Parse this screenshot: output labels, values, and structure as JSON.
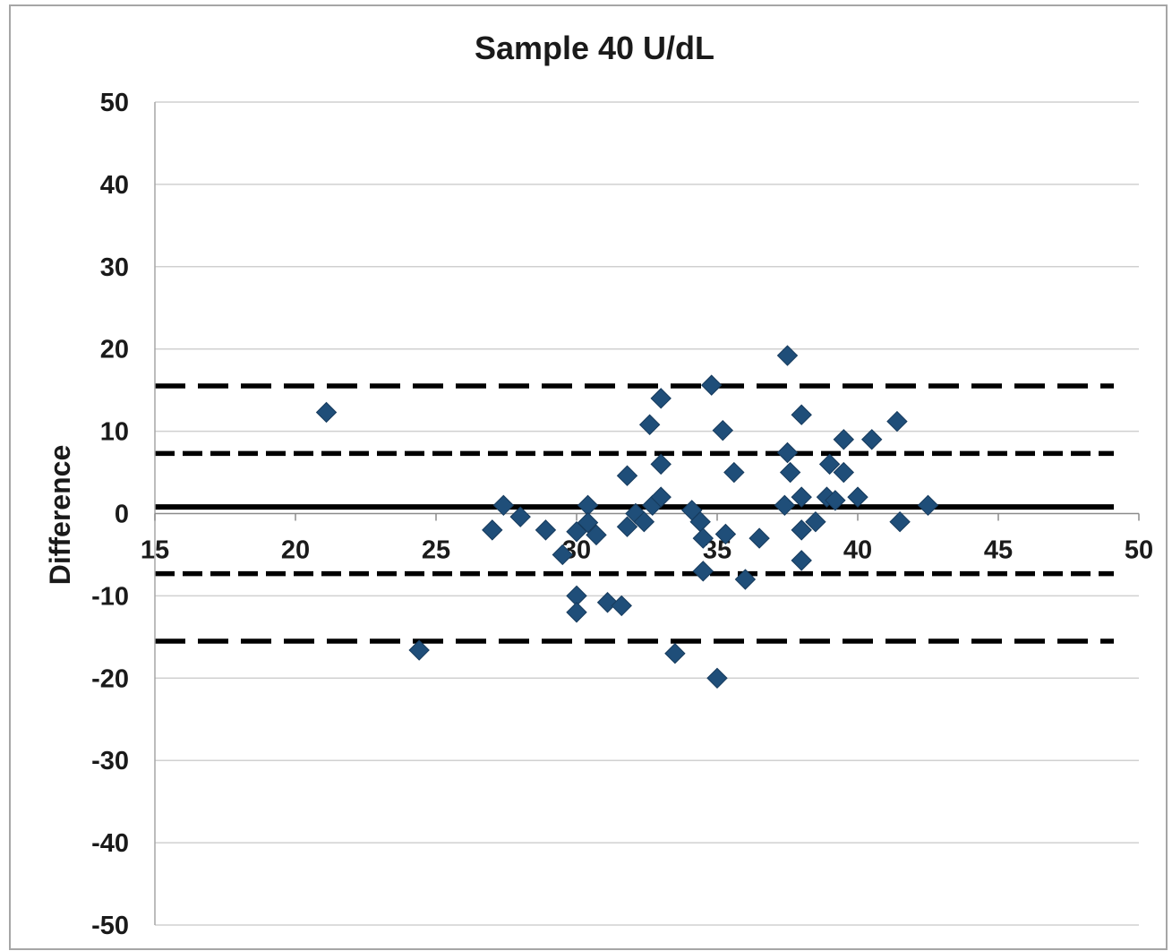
{
  "chart_data": {
    "type": "scatter",
    "title": "Sample 40 U/dL",
    "xlabel": "",
    "ylabel": "Difference",
    "xlim": [
      15,
      50
    ],
    "ylim": [
      -50,
      50
    ],
    "x_ticks": [
      15,
      20,
      25,
      30,
      35,
      40,
      45,
      50
    ],
    "y_ticks": [
      50,
      40,
      30,
      20,
      10,
      0,
      -10,
      -20,
      -30,
      -40,
      -50
    ],
    "grid": "horizontal",
    "legend": "none",
    "colors": {
      "marker": "#1f4e79",
      "reference_line": "#000000",
      "gridline": "#d0d0d0",
      "frame": "#a6a6a6"
    },
    "series": [
      {
        "marker": "diamond",
        "x": [
          21.1,
          24.4,
          27.0,
          27.4,
          28.0,
          28.9,
          29.5,
          30.0,
          30.0,
          30.0,
          30.4,
          30.4,
          30.7,
          31.1,
          31.6,
          31.8,
          31.8,
          32.1,
          32.4,
          32.6,
          32.7,
          33.0,
          33.0,
          33.0,
          33.5,
          34.1,
          34.4,
          34.5,
          34.5,
          34.8,
          35.0,
          35.2,
          35.3,
          35.6,
          36.0,
          36.5,
          37.4,
          37.5,
          37.5,
          37.6,
          38.0,
          38.0,
          38.0,
          38.0,
          38.5,
          38.9,
          39.0,
          39.2,
          39.5,
          39.5,
          40.0,
          40.5,
          41.4,
          41.5,
          42.5
        ],
        "y": [
          12.3,
          -16.6,
          -2.0,
          1.0,
          -0.4,
          -2.0,
          -5.0,
          -2.2,
          -10.0,
          -12.0,
          1.0,
          -1.1,
          -2.6,
          -10.8,
          -11.2,
          4.6,
          -1.6,
          0.0,
          -1.0,
          10.8,
          1.0,
          14.0,
          6.0,
          2.0,
          -17.0,
          0.4,
          -1.0,
          -3.0,
          -7.0,
          15.6,
          -20.0,
          10.1,
          -2.5,
          5.0,
          -8.0,
          -3.0,
          1.0,
          19.2,
          7.4,
          5.0,
          12.0,
          2.0,
          -2.0,
          -5.7,
          -1.0,
          2.0,
          6.0,
          1.6,
          9.0,
          5.0,
          2.0,
          9.0,
          11.2,
          -1.0,
          1.0
        ]
      }
    ],
    "reference_lines": [
      {
        "y": 0.8,
        "style": "solid"
      },
      {
        "y": 7.3,
        "style": "short-dash"
      },
      {
        "y": -7.3,
        "style": "short-dash"
      },
      {
        "y": 15.5,
        "style": "long-dash"
      },
      {
        "y": -15.5,
        "style": "long-dash"
      }
    ]
  }
}
